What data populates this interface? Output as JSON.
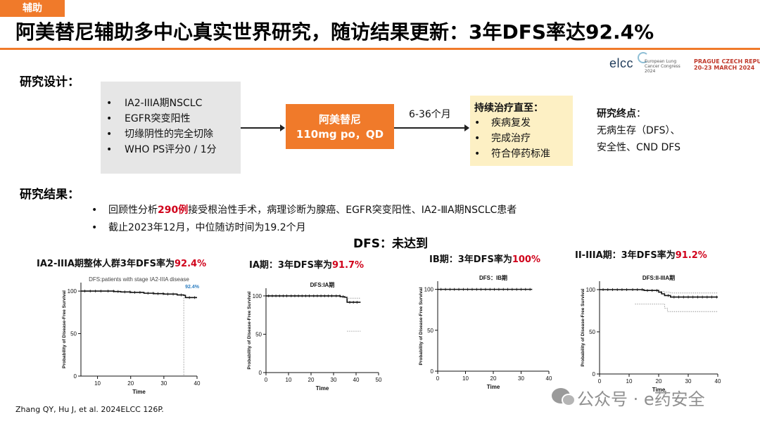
{
  "header": {
    "tag": "辅助",
    "title": "阿美替尼辅助多中心真实世界研究，随访结果更新：3年DFS率达92.4%"
  },
  "logos": {
    "elcc_word": "elcc",
    "elcc_sub": "European Lung Cancer Congress 2024",
    "prague_line1": "PRAGUE CZECH REPUBLIC",
    "prague_line2": "20-23 MARCH 2024"
  },
  "design": {
    "heading": "研究设计：",
    "criteria": [
      "IA2-IIIA期NSCLC",
      "EGFR突变阳性",
      "切缘阴性的完全切除",
      "WHO PS评分0 / 1分"
    ],
    "drug_line1": "阿美替尼",
    "drug_line2": "110mg  po，QD",
    "duration": "6-36个月",
    "continue_heading": "持续治疗直至：",
    "continue_items": [
      "疾病复发",
      "完成治疗",
      "符合停药标准"
    ],
    "endpoint_heading": "研究终点",
    "endpoint_colon": "：",
    "endpoint_line1": "无病生存（DFS）、",
    "endpoint_line2": "安全性、CND DFS"
  },
  "results": {
    "heading": "研究结果：",
    "line1_pre": "回顾性分析",
    "line1_num": "290例",
    "line1_post": "接受根治性手术，病理诊断为腺癌、EGFR突变阳性、IA2-ⅢA期NSCLC患者",
    "line2": "截止2023年12月，中位随访时间为19.2个月"
  },
  "dfs_title": "DFS：未达到",
  "colors": {
    "accent": "#f07a2a",
    "highlight": "#d0021b",
    "design_box": "#e6e6e6",
    "continue_box": "#fdf0c4"
  },
  "chart_data": [
    {
      "type": "line",
      "heading_pre": "IA2-IIIA期整体人群3年DFS率为",
      "heading_val": "92.4%",
      "title": "DFS:patients with stage IA2-IIIA disease",
      "xlabel": "Time",
      "ylabel": "Probability of Disease-Free Survival",
      "xlim": [
        5,
        40
      ],
      "ylim": [
        0,
        110
      ],
      "xticks": [
        10,
        20,
        30,
        40
      ],
      "yticks": [
        0,
        50,
        100
      ],
      "annotation": "92.4%",
      "annotation_x": 36,
      "series": [
        {
          "style": "solid",
          "x": [
            5,
            12,
            15,
            17,
            20,
            24,
            27,
            30,
            34,
            36,
            36.5,
            40
          ],
          "y": [
            100,
            100,
            99.5,
            99,
            98.5,
            97.5,
            97,
            96.5,
            95.5,
            95,
            92.4,
            92.4
          ]
        }
      ]
    },
    {
      "type": "line",
      "heading_pre": "IA期：3年DFS率为",
      "heading_val": "91.7%",
      "title": "DFS:IA期",
      "xlabel": "Time",
      "ylabel": "Probability of Disease-Free Survival",
      "xlim": [
        0,
        50
      ],
      "ylim": [
        0,
        110
      ],
      "xticks": [
        0,
        10,
        20,
        30,
        40,
        50
      ],
      "yticks": [
        0,
        50,
        100
      ],
      "series": [
        {
          "style": "solid",
          "x": [
            0,
            10,
            20,
            30,
            33,
            35,
            36,
            42
          ],
          "y": [
            100,
            100,
            100,
            100,
            99,
            98,
            91.7,
            91.7
          ]
        },
        {
          "style": "dotted",
          "x": [
            35,
            36,
            42
          ],
          "y": [
            98,
            97,
            97
          ]
        },
        {
          "style": "dotted",
          "x": [
            36,
            42
          ],
          "y": [
            54,
            54
          ]
        }
      ]
    },
    {
      "type": "line",
      "heading_pre": "IB期：3年DFS率为",
      "heading_val": "100%",
      "title": "DFS：IB期",
      "xlabel": "Time",
      "ylabel": "Probability of Disease-Free Survival",
      "xlim": [
        0,
        40
      ],
      "ylim": [
        0,
        110
      ],
      "xticks": [
        0,
        10,
        20,
        30,
        40
      ],
      "yticks": [
        0,
        50,
        100
      ],
      "series": [
        {
          "style": "solid",
          "x": [
            0,
            34
          ],
          "y": [
            100,
            100
          ]
        }
      ]
    },
    {
      "type": "line",
      "heading_pre": "II-IIIA期：3年DFS率为",
      "heading_val": "91.2%",
      "title": "DFS:II-IIIA期",
      "xlabel": "Time",
      "ylabel": "Probability of Disease-Free Survival",
      "xlim": [
        0,
        40
      ],
      "ylim": [
        0,
        110
      ],
      "xticks": [
        0,
        10,
        20,
        30,
        40
      ],
      "yticks": [
        0,
        50,
        100
      ],
      "series": [
        {
          "style": "solid",
          "x": [
            0,
            10,
            15,
            20,
            21,
            22,
            24,
            40
          ],
          "y": [
            100,
            100,
            99,
            97,
            95,
            93,
            91.2,
            91.2
          ]
        },
        {
          "style": "dotted",
          "x": [
            20,
            22,
            24,
            40
          ],
          "y": [
            98,
            97,
            96,
            96
          ]
        },
        {
          "style": "dotted",
          "x": [
            12,
            20,
            22,
            23,
            40
          ],
          "y": [
            83,
            83,
            78,
            74,
            74
          ]
        }
      ]
    }
  ],
  "reference": "Zhang QY, Hu J, et al. 2024ELCC 126P.",
  "watermark": "公众号 · e药安全"
}
